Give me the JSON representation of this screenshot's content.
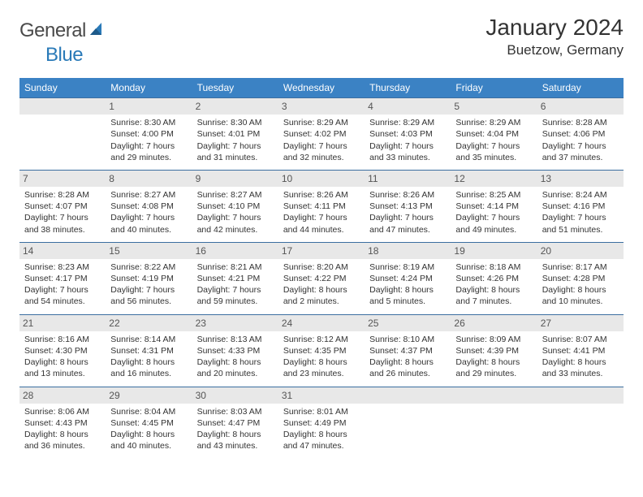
{
  "brand": {
    "part1": "General",
    "part2": "Blue"
  },
  "title": "January 2024",
  "location": "Buetzow, Germany",
  "colors": {
    "header_bg": "#3b82c4",
    "header_text": "#ffffff",
    "daynum_bg": "#e8e8e8",
    "rule": "#3b6ea0",
    "brand_blue": "#2a7ab8",
    "text": "#333333"
  },
  "weekdays": [
    "Sunday",
    "Monday",
    "Tuesday",
    "Wednesday",
    "Thursday",
    "Friday",
    "Saturday"
  ],
  "weeks": [
    [
      {
        "n": "",
        "sr": "",
        "ss": "",
        "dl1": "",
        "dl2": ""
      },
      {
        "n": "1",
        "sr": "Sunrise: 8:30 AM",
        "ss": "Sunset: 4:00 PM",
        "dl1": "Daylight: 7 hours",
        "dl2": "and 29 minutes."
      },
      {
        "n": "2",
        "sr": "Sunrise: 8:30 AM",
        "ss": "Sunset: 4:01 PM",
        "dl1": "Daylight: 7 hours",
        "dl2": "and 31 minutes."
      },
      {
        "n": "3",
        "sr": "Sunrise: 8:29 AM",
        "ss": "Sunset: 4:02 PM",
        "dl1": "Daylight: 7 hours",
        "dl2": "and 32 minutes."
      },
      {
        "n": "4",
        "sr": "Sunrise: 8:29 AM",
        "ss": "Sunset: 4:03 PM",
        "dl1": "Daylight: 7 hours",
        "dl2": "and 33 minutes."
      },
      {
        "n": "5",
        "sr": "Sunrise: 8:29 AM",
        "ss": "Sunset: 4:04 PM",
        "dl1": "Daylight: 7 hours",
        "dl2": "and 35 minutes."
      },
      {
        "n": "6",
        "sr": "Sunrise: 8:28 AM",
        "ss": "Sunset: 4:06 PM",
        "dl1": "Daylight: 7 hours",
        "dl2": "and 37 minutes."
      }
    ],
    [
      {
        "n": "7",
        "sr": "Sunrise: 8:28 AM",
        "ss": "Sunset: 4:07 PM",
        "dl1": "Daylight: 7 hours",
        "dl2": "and 38 minutes."
      },
      {
        "n": "8",
        "sr": "Sunrise: 8:27 AM",
        "ss": "Sunset: 4:08 PM",
        "dl1": "Daylight: 7 hours",
        "dl2": "and 40 minutes."
      },
      {
        "n": "9",
        "sr": "Sunrise: 8:27 AM",
        "ss": "Sunset: 4:10 PM",
        "dl1": "Daylight: 7 hours",
        "dl2": "and 42 minutes."
      },
      {
        "n": "10",
        "sr": "Sunrise: 8:26 AM",
        "ss": "Sunset: 4:11 PM",
        "dl1": "Daylight: 7 hours",
        "dl2": "and 44 minutes."
      },
      {
        "n": "11",
        "sr": "Sunrise: 8:26 AM",
        "ss": "Sunset: 4:13 PM",
        "dl1": "Daylight: 7 hours",
        "dl2": "and 47 minutes."
      },
      {
        "n": "12",
        "sr": "Sunrise: 8:25 AM",
        "ss": "Sunset: 4:14 PM",
        "dl1": "Daylight: 7 hours",
        "dl2": "and 49 minutes."
      },
      {
        "n": "13",
        "sr": "Sunrise: 8:24 AM",
        "ss": "Sunset: 4:16 PM",
        "dl1": "Daylight: 7 hours",
        "dl2": "and 51 minutes."
      }
    ],
    [
      {
        "n": "14",
        "sr": "Sunrise: 8:23 AM",
        "ss": "Sunset: 4:17 PM",
        "dl1": "Daylight: 7 hours",
        "dl2": "and 54 minutes."
      },
      {
        "n": "15",
        "sr": "Sunrise: 8:22 AM",
        "ss": "Sunset: 4:19 PM",
        "dl1": "Daylight: 7 hours",
        "dl2": "and 56 minutes."
      },
      {
        "n": "16",
        "sr": "Sunrise: 8:21 AM",
        "ss": "Sunset: 4:21 PM",
        "dl1": "Daylight: 7 hours",
        "dl2": "and 59 minutes."
      },
      {
        "n": "17",
        "sr": "Sunrise: 8:20 AM",
        "ss": "Sunset: 4:22 PM",
        "dl1": "Daylight: 8 hours",
        "dl2": "and 2 minutes."
      },
      {
        "n": "18",
        "sr": "Sunrise: 8:19 AM",
        "ss": "Sunset: 4:24 PM",
        "dl1": "Daylight: 8 hours",
        "dl2": "and 5 minutes."
      },
      {
        "n": "19",
        "sr": "Sunrise: 8:18 AM",
        "ss": "Sunset: 4:26 PM",
        "dl1": "Daylight: 8 hours",
        "dl2": "and 7 minutes."
      },
      {
        "n": "20",
        "sr": "Sunrise: 8:17 AM",
        "ss": "Sunset: 4:28 PM",
        "dl1": "Daylight: 8 hours",
        "dl2": "and 10 minutes."
      }
    ],
    [
      {
        "n": "21",
        "sr": "Sunrise: 8:16 AM",
        "ss": "Sunset: 4:30 PM",
        "dl1": "Daylight: 8 hours",
        "dl2": "and 13 minutes."
      },
      {
        "n": "22",
        "sr": "Sunrise: 8:14 AM",
        "ss": "Sunset: 4:31 PM",
        "dl1": "Daylight: 8 hours",
        "dl2": "and 16 minutes."
      },
      {
        "n": "23",
        "sr": "Sunrise: 8:13 AM",
        "ss": "Sunset: 4:33 PM",
        "dl1": "Daylight: 8 hours",
        "dl2": "and 20 minutes."
      },
      {
        "n": "24",
        "sr": "Sunrise: 8:12 AM",
        "ss": "Sunset: 4:35 PM",
        "dl1": "Daylight: 8 hours",
        "dl2": "and 23 minutes."
      },
      {
        "n": "25",
        "sr": "Sunrise: 8:10 AM",
        "ss": "Sunset: 4:37 PM",
        "dl1": "Daylight: 8 hours",
        "dl2": "and 26 minutes."
      },
      {
        "n": "26",
        "sr": "Sunrise: 8:09 AM",
        "ss": "Sunset: 4:39 PM",
        "dl1": "Daylight: 8 hours",
        "dl2": "and 29 minutes."
      },
      {
        "n": "27",
        "sr": "Sunrise: 8:07 AM",
        "ss": "Sunset: 4:41 PM",
        "dl1": "Daylight: 8 hours",
        "dl2": "and 33 minutes."
      }
    ],
    [
      {
        "n": "28",
        "sr": "Sunrise: 8:06 AM",
        "ss": "Sunset: 4:43 PM",
        "dl1": "Daylight: 8 hours",
        "dl2": "and 36 minutes."
      },
      {
        "n": "29",
        "sr": "Sunrise: 8:04 AM",
        "ss": "Sunset: 4:45 PM",
        "dl1": "Daylight: 8 hours",
        "dl2": "and 40 minutes."
      },
      {
        "n": "30",
        "sr": "Sunrise: 8:03 AM",
        "ss": "Sunset: 4:47 PM",
        "dl1": "Daylight: 8 hours",
        "dl2": "and 43 minutes."
      },
      {
        "n": "31",
        "sr": "Sunrise: 8:01 AM",
        "ss": "Sunset: 4:49 PM",
        "dl1": "Daylight: 8 hours",
        "dl2": "and 47 minutes."
      },
      {
        "n": "",
        "sr": "",
        "ss": "",
        "dl1": "",
        "dl2": ""
      },
      {
        "n": "",
        "sr": "",
        "ss": "",
        "dl1": "",
        "dl2": ""
      },
      {
        "n": "",
        "sr": "",
        "ss": "",
        "dl1": "",
        "dl2": ""
      }
    ]
  ]
}
